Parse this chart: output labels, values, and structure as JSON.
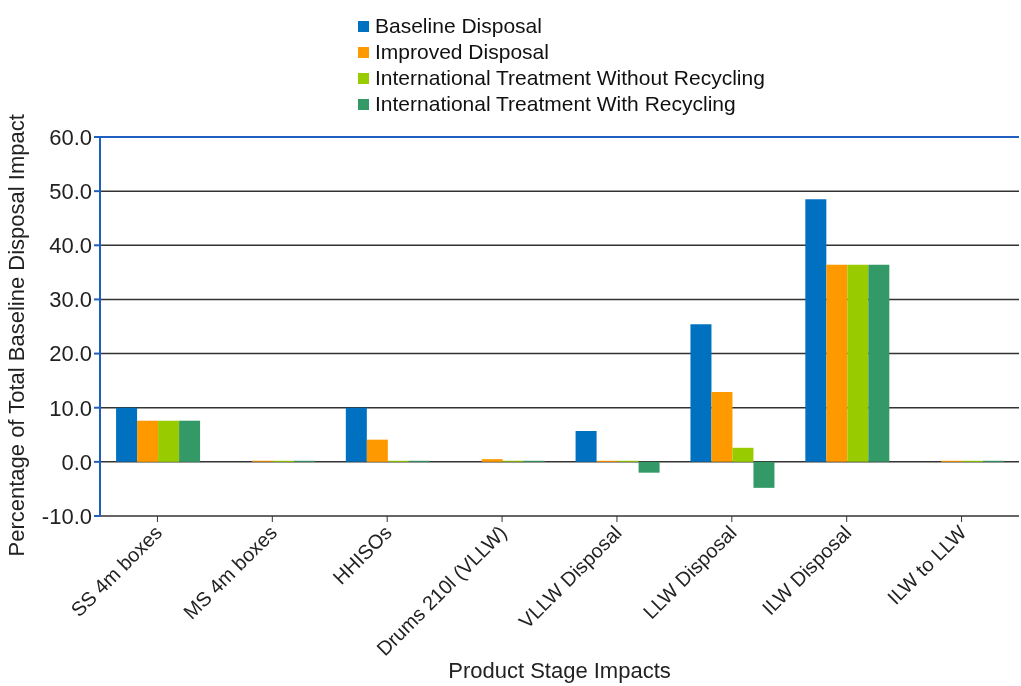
{
  "chart_data": {
    "type": "bar",
    "xlabel": "Product Stage Impacts",
    "ylabel": "Percentage of Total Baseline Disposal Impact",
    "categories": [
      "SS 4m boxes",
      "MS 4m boxes",
      "HHISOs",
      "Drums 210l (VLLW)",
      "VLLW Disposal",
      "LLW Disposal",
      "ILW Disposal",
      "ILW to LLW"
    ],
    "series": [
      {
        "name": "Baseline Disposal",
        "color": "#0070c0",
        "values": [
          10.0,
          0,
          10.0,
          0,
          5.7,
          25.4,
          48.5,
          0
        ]
      },
      {
        "name": "Improved Disposal",
        "color": "#ff9900",
        "values": [
          7.6,
          0.2,
          4.1,
          0.5,
          0.2,
          12.9,
          36.4,
          0.2
        ]
      },
      {
        "name": "International Treatment Without Recycling",
        "color": "#99cc00",
        "values": [
          7.6,
          0.2,
          0.2,
          0.2,
          0.2,
          2.6,
          36.4,
          0.2
        ]
      },
      {
        "name": "International Treatment With Recycling",
        "color": "#339966",
        "values": [
          7.6,
          0.2,
          0.2,
          0.2,
          -2.0,
          -4.8,
          36.4,
          0.2
        ]
      }
    ],
    "ylim": [
      -10,
      60
    ],
    "yticks": [
      {
        "value": -10,
        "label": "-10.0"
      },
      {
        "value": 0,
        "label": "0.0"
      },
      {
        "value": 10,
        "label": "10.0"
      },
      {
        "value": 20,
        "label": "20.0"
      },
      {
        "value": 30,
        "label": "30.0"
      },
      {
        "value": 40,
        "label": "40.0"
      },
      {
        "value": 50,
        "label": "50.0"
      },
      {
        "value": 60,
        "label": "60.0"
      }
    ],
    "grid": "y",
    "legend": "top"
  }
}
